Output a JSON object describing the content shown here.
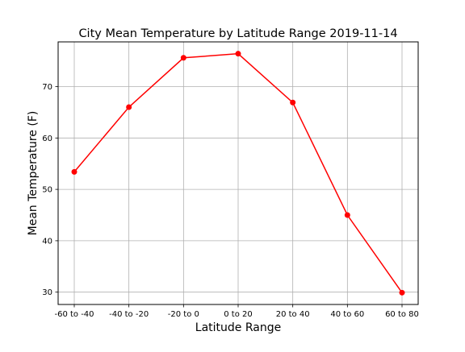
{
  "chart_data": {
    "type": "line",
    "title": "City Mean Temperature by Latitude Range  2019-11-14",
    "xlabel": "Latitude Range",
    "ylabel": "Mean Temperature (F)",
    "categories": [
      "-60 to -40",
      "-40 to -20",
      "-20 to 0",
      "0 to 20",
      "20 to 40",
      "40 to 60",
      "60 to 80"
    ],
    "series": [
      {
        "values": [
          53.4,
          66.0,
          75.6,
          76.4,
          66.9,
          45.0,
          29.9
        ],
        "color": "#ff0000",
        "marker": "circle"
      }
    ],
    "yticks": [
      30,
      40,
      50,
      60,
      70
    ],
    "ylim": [
      27.6,
      78.7
    ],
    "grid": true,
    "legend": "none"
  }
}
